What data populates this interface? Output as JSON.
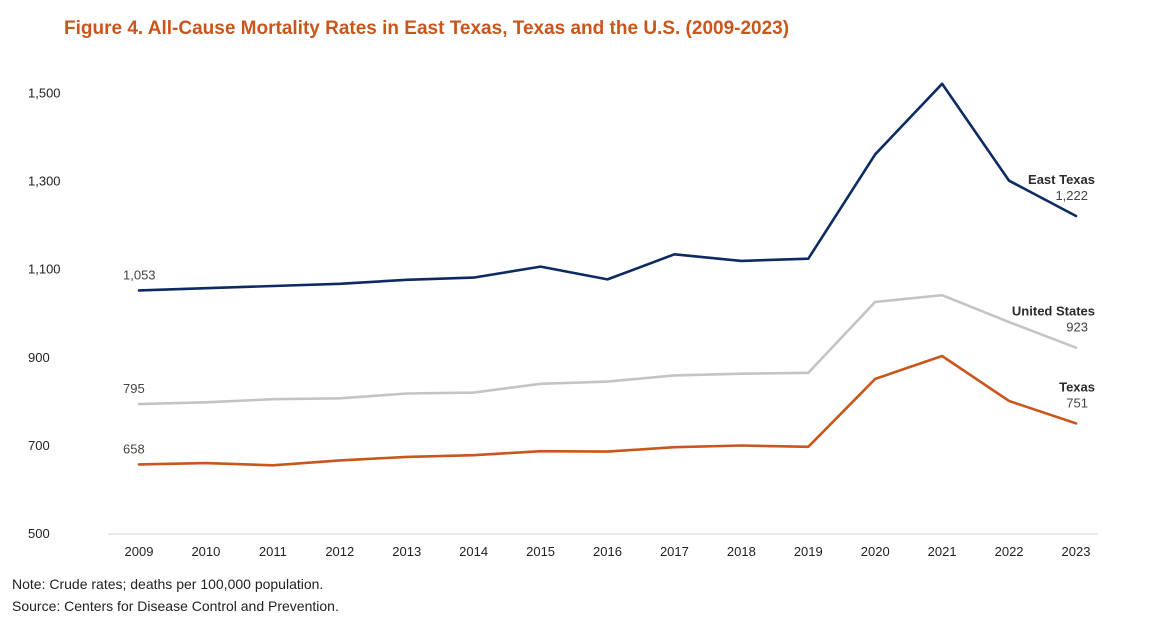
{
  "chart_data": {
    "type": "line",
    "title": "Figure 4. All-Cause Mortality Rates in East Texas, Texas and the U.S. (2009-2023)",
    "xlabel": "",
    "ylabel": "",
    "ylim": [
      500,
      1520
    ],
    "yticks": [
      500,
      700,
      900,
      1100,
      1300,
      1500
    ],
    "ytick_labels": [
      "500",
      "700",
      "900",
      "1,100",
      "1,300",
      "1,500"
    ],
    "grid": false,
    "categories": [
      "2009",
      "2010",
      "2011",
      "2012",
      "2013",
      "2014",
      "2015",
      "2016",
      "2017",
      "2018",
      "2019",
      "2020",
      "2021",
      "2022",
      "2023"
    ],
    "series": [
      {
        "name": "East Texas",
        "color": "#0d2a63",
        "values": [
          1053,
          1058,
          1063,
          1068,
          1077,
          1082,
          1107,
          1078,
          1135,
          1120,
          1125,
          1362,
          1522,
          1302,
          1222
        ],
        "start_label": "1,053",
        "end_label": "1,222"
      },
      {
        "name": "United States",
        "color": "#c4c4c4",
        "values": [
          795,
          799,
          806,
          808,
          819,
          821,
          841,
          846,
          860,
          864,
          866,
          1027,
          1042,
          981,
          923
        ],
        "start_label": "795",
        "end_label": "923"
      },
      {
        "name": "Texas",
        "color": "#c8561d",
        "values": [
          658,
          661,
          656,
          667,
          675,
          679,
          688,
          687,
          697,
          701,
          698,
          852,
          904,
          802,
          751
        ],
        "start_label": "658",
        "end_label": "751"
      }
    ]
  },
  "notes": {
    "note": "Note: Crude rates; deaths per 100,000 population.",
    "source": "Source: Centers for Disease Control and Prevention."
  }
}
